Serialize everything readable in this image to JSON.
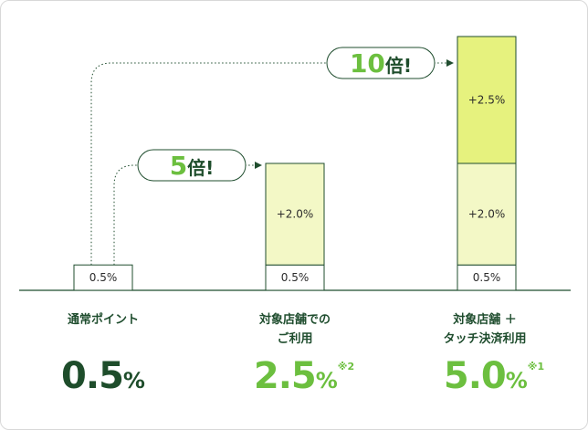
{
  "chart_data": {
    "type": "bar",
    "stacked": true,
    "categories": [
      "通常ポイント",
      "対象店舗でのご利用",
      "対象店舗＋タッチ決済利用"
    ],
    "series": [
      {
        "values": [
          0.5,
          0.5,
          0.5
        ],
        "labels": [
          "0.5%",
          "0.5%",
          "0.5%"
        ],
        "color": "#ffffff"
      },
      {
        "values": [
          0,
          2.0,
          2.0
        ],
        "labels": [
          "",
          "+2.0%",
          "+2.0%"
        ],
        "color": "#f3f8c6"
      },
      {
        "values": [
          0,
          0,
          2.5
        ],
        "labels": [
          "",
          "",
          "+2.5%"
        ],
        "color": "#e6f27e"
      }
    ],
    "ylim": [
      0,
      5.0
    ],
    "grid": false,
    "annotations": [
      {
        "text": "5倍!",
        "from": 0,
        "to": 1
      },
      {
        "text": "10倍!",
        "from": 0,
        "to": 2
      }
    ]
  },
  "columns": [
    {
      "label": "通常ポイント",
      "total_num": "0.5",
      "unit": "%",
      "note": "",
      "color": "#1e4d2b"
    },
    {
      "label": "対象店舗での\nご利用",
      "total_num": "2.5",
      "unit": "%",
      "note": "※2",
      "color": "#6cbf3f"
    },
    {
      "label": "対象店舗 ＋\nタッチ決済利用",
      "total_num": "5.0",
      "unit": "%",
      "note": "※1",
      "color": "#6cbf3f"
    }
  ],
  "colors": {
    "baseline": "#1f4d2e",
    "bar_border": "#1f4d2e",
    "accent_green": "#6cbf3f",
    "dark_green": "#1e4d2b",
    "arrow": "#1f4d2e"
  }
}
